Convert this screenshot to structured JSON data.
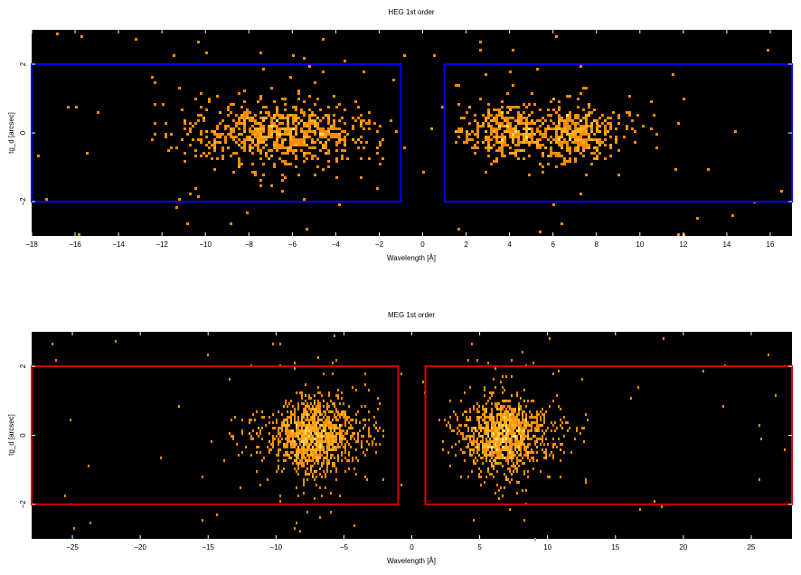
{
  "chart_data": [
    {
      "type": "heatmap",
      "title": "HEG 1st order",
      "xlabel": "Wavelength [Å]",
      "ylabel": "tg_d [arcsec]",
      "xlim": [
        -18,
        17
      ],
      "ylim": [
        -3,
        3
      ],
      "x_ticks": [
        -18,
        -16,
        -14,
        -12,
        -10,
        -8,
        -6,
        -4,
        -2,
        0,
        2,
        4,
        6,
        8,
        10,
        12,
        14,
        16
      ],
      "x_tick_labels": [
        "−18",
        "−16",
        "−14",
        "−12",
        "−10",
        "−8",
        "−6",
        "−4",
        "−2",
        "0",
        "2",
        "4",
        "6",
        "8",
        "10",
        "12",
        "14",
        "16"
      ],
      "y_ticks": [
        -2,
        0,
        2
      ],
      "y_tick_labels": [
        "−2",
        "0",
        "2"
      ],
      "background": "#000000",
      "colormap": [
        "#ff8c00",
        "#ffb020",
        "#ffe060",
        "#ffffc0"
      ],
      "regions": [
        {
          "x": [
            -18,
            -1
          ],
          "y": [
            -2,
            2
          ],
          "color": "#0000ff"
        },
        {
          "x": [
            1,
            17
          ],
          "y": [
            -2,
            2
          ],
          "color": "#0000ff"
        }
      ],
      "clusters": [
        {
          "x_range": [
            -12.5,
            -1
          ],
          "x_center": -6.5,
          "x_sigma": 2.8,
          "y_sigma": 0.45,
          "peak_x": [
            -7.5,
            -5.8
          ]
        },
        {
          "x_range": [
            1.5,
            12.5
          ],
          "x_center": 5.5,
          "x_sigma": 2.2,
          "y_sigma": 0.4,
          "peak_x": [
            3.5,
            7.0
          ]
        }
      ]
    },
    {
      "type": "heatmap",
      "title": "MEG 1st order",
      "xlabel": "Wavelength [Å]",
      "ylabel": "tg_d [arcsec]",
      "xlim": [
        -28,
        28
      ],
      "ylim": [
        -3,
        3
      ],
      "x_ticks": [
        -25,
        -20,
        -15,
        -10,
        -5,
        0,
        5,
        10,
        15,
        20,
        25
      ],
      "x_tick_labels": [
        "−25",
        "−20",
        "−15",
        "−10",
        "−5",
        "0",
        "5",
        "10",
        "15",
        "20",
        "25"
      ],
      "y_ticks": [
        -2,
        0,
        2
      ],
      "y_tick_labels": [
        "−2",
        "0",
        "2"
      ],
      "background": "#000000",
      "colormap": [
        "#ff8c00",
        "#ffb020",
        "#ffe060",
        "#ffffc0"
      ],
      "regions": [
        {
          "x": [
            -28,
            -1
          ],
          "y": [
            -2,
            2
          ],
          "color": "#dd0000"
        },
        {
          "x": [
            1,
            28
          ],
          "y": [
            -2,
            2
          ],
          "color": "#dd0000"
        }
      ],
      "clusters": [
        {
          "x_range": [
            -14,
            -2
          ],
          "x_center": -7.5,
          "x_sigma": 2.6,
          "y_sigma": 0.5,
          "peak_x": [
            -7.5,
            -7.0
          ]
        },
        {
          "x_range": [
            2,
            13
          ],
          "x_center": 7.0,
          "x_sigma": 2.4,
          "y_sigma": 0.5,
          "peak_x": [
            6.5,
            7.0
          ]
        }
      ]
    }
  ]
}
